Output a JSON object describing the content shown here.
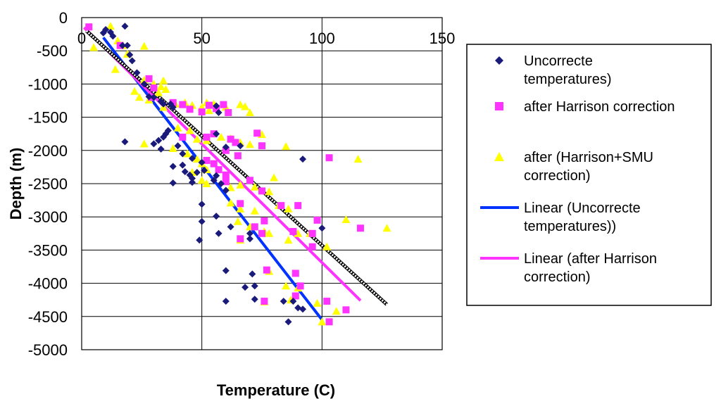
{
  "chart_data": {
    "type": "scatter",
    "xlabel": "Temperature (C)",
    "ylabel": "Depth (m)",
    "xlim": [
      0,
      150
    ],
    "ylim": [
      -5000,
      0
    ],
    "x_ticks": [
      0,
      50,
      100,
      150
    ],
    "y_ticks": [
      0,
      -500,
      -1000,
      -1500,
      -2000,
      -2500,
      -3000,
      -3500,
      -4000,
      -4500,
      -5000
    ],
    "x_tick_labels": [
      "0",
      "50",
      "100",
      "150"
    ],
    "y_tick_labels": [
      "0",
      "-500",
      "-1000",
      "-1500",
      "-2000",
      "-2500",
      "-3000",
      "-3500",
      "-4000",
      "-4500",
      "-5000"
    ],
    "legend": {
      "position": "right",
      "entries": [
        {
          "series": "uncorrected",
          "lines": [
            "Uncorrecte",
            "temperatures)"
          ]
        },
        {
          "series": "harrison",
          "lines": [
            "after Harrison correction"
          ]
        },
        {
          "series": "harrison_smu",
          "lines": [
            "after (Harrison+SMU",
            "correction)"
          ]
        },
        {
          "series": "linear_uncorrected",
          "lines": [
            "Linear (Uncorrecte",
            "temperatures))"
          ]
        },
        {
          "series": "linear_harrison",
          "lines": [
            "Linear (after Harrison",
            "correction)"
          ]
        }
      ]
    },
    "colors": {
      "uncorrected": "#1a1a7a",
      "harrison": "#ff33ff",
      "harrison_smu": "#ffff00",
      "linear_uncorrected": "#0033ff",
      "linear_harrison": "#ff33ff",
      "dotted_trend": "#555555",
      "grid": "#000000"
    },
    "series": [
      {
        "name": "uncorrected",
        "marker": "diamond",
        "points": [
          [
            18,
            -130
          ],
          [
            10,
            -180
          ],
          [
            12,
            -220
          ],
          [
            13,
            -280
          ],
          [
            9,
            -230
          ],
          [
            17,
            -420
          ],
          [
            19,
            -420
          ],
          [
            20,
            -560
          ],
          [
            21,
            -650
          ],
          [
            23,
            -830
          ],
          [
            26,
            -1000
          ],
          [
            28,
            -1190
          ],
          [
            30,
            -1200
          ],
          [
            33,
            -1260
          ],
          [
            34,
            -1300
          ],
          [
            37,
            -1300
          ],
          [
            38,
            -1350
          ],
          [
            36,
            -1700
          ],
          [
            35,
            -1750
          ],
          [
            34,
            -1800
          ],
          [
            32,
            -1850
          ],
          [
            30,
            -1900
          ],
          [
            33,
            -1980
          ],
          [
            18,
            -1870
          ],
          [
            40,
            -1930
          ],
          [
            42,
            -2050
          ],
          [
            46,
            -2120
          ],
          [
            38,
            -2240
          ],
          [
            42,
            -2220
          ],
          [
            43,
            -2320
          ],
          [
            45,
            -2370
          ],
          [
            46,
            -2420
          ],
          [
            46,
            -2480
          ],
          [
            38,
            -2490
          ],
          [
            48,
            -2330
          ],
          [
            50,
            -2180
          ],
          [
            51,
            -2300
          ],
          [
            56,
            -2380
          ],
          [
            55,
            -2450
          ],
          [
            58,
            -2500
          ],
          [
            60,
            -2600
          ],
          [
            50,
            -2810
          ],
          [
            56,
            -2990
          ],
          [
            50,
            -3070
          ],
          [
            57,
            -3250
          ],
          [
            62,
            -3150
          ],
          [
            70,
            -3250
          ],
          [
            70,
            -3330
          ],
          [
            49,
            -3350
          ],
          [
            56,
            -1330
          ],
          [
            57,
            -1430
          ],
          [
            56,
            -1750
          ],
          [
            60,
            -1950
          ],
          [
            66,
            -1930
          ],
          [
            60,
            -3810
          ],
          [
            71,
            -3860
          ],
          [
            72,
            -4040
          ],
          [
            68,
            -4060
          ],
          [
            72,
            -4240
          ],
          [
            60,
            -4270
          ],
          [
            84,
            -4270
          ],
          [
            88,
            -4270
          ],
          [
            90,
            -4370
          ],
          [
            92,
            -4390
          ],
          [
            86,
            -4580
          ],
          [
            92,
            -2130
          ],
          [
            100,
            -3170
          ]
        ]
      },
      {
        "name": "harrison",
        "marker": "square",
        "points": [
          [
            3,
            -140
          ],
          [
            16,
            -420
          ],
          [
            28,
            -920
          ],
          [
            30,
            -1060
          ],
          [
            29,
            -1200
          ],
          [
            38,
            -1280
          ],
          [
            42,
            -1310
          ],
          [
            45,
            -1380
          ],
          [
            50,
            -1420
          ],
          [
            53,
            -1320
          ],
          [
            56,
            -1370
          ],
          [
            59,
            -1310
          ],
          [
            61,
            -1430
          ],
          [
            42,
            -1800
          ],
          [
            52,
            -1800
          ],
          [
            55,
            -1750
          ],
          [
            62,
            -1830
          ],
          [
            64,
            -1880
          ],
          [
            73,
            -1740
          ],
          [
            75,
            -1930
          ],
          [
            60,
            -2000
          ],
          [
            65,
            -2080
          ],
          [
            52,
            -2150
          ],
          [
            55,
            -2200
          ],
          [
            57,
            -2290
          ],
          [
            60,
            -2370
          ],
          [
            60,
            -2470
          ],
          [
            70,
            -2450
          ],
          [
            66,
            -2800
          ],
          [
            75,
            -2610
          ],
          [
            83,
            -2830
          ],
          [
            90,
            -2830
          ],
          [
            76,
            -3060
          ],
          [
            72,
            -3150
          ],
          [
            75,
            -3250
          ],
          [
            66,
            -3330
          ],
          [
            88,
            -3220
          ],
          [
            96,
            -3250
          ],
          [
            98,
            -3050
          ],
          [
            96,
            -3450
          ],
          [
            77,
            -3800
          ],
          [
            89,
            -3850
          ],
          [
            91,
            -4040
          ],
          [
            76,
            -4270
          ],
          [
            89,
            -4190
          ],
          [
            102,
            -4270
          ],
          [
            103,
            -4580
          ],
          [
            110,
            -4400
          ],
          [
            103,
            -2110
          ],
          [
            116,
            -3170
          ]
        ]
      },
      {
        "name": "harrison_smu",
        "marker": "triangle",
        "points": [
          [
            12,
            -130
          ],
          [
            15,
            -350
          ],
          [
            17,
            -420
          ],
          [
            26,
            -430
          ],
          [
            5,
            -450
          ],
          [
            19,
            -550
          ],
          [
            14,
            -780
          ],
          [
            26,
            -940
          ],
          [
            30,
            -1000
          ],
          [
            32,
            -1130
          ],
          [
            33,
            -1040
          ],
          [
            35,
            -1080
          ],
          [
            34,
            -950
          ],
          [
            22,
            -1110
          ],
          [
            24,
            -1200
          ],
          [
            28,
            -1240
          ],
          [
            34,
            -1350
          ],
          [
            39,
            -1300
          ],
          [
            43,
            -1280
          ],
          [
            46,
            -1320
          ],
          [
            50,
            -1350
          ],
          [
            53,
            -1400
          ],
          [
            52,
            -1280
          ],
          [
            55,
            -1300
          ],
          [
            60,
            -1350
          ],
          [
            66,
            -1310
          ],
          [
            68,
            -1340
          ],
          [
            70,
            -1430
          ],
          [
            40,
            -1660
          ],
          [
            45,
            -1700
          ],
          [
            48,
            -1830
          ],
          [
            52,
            -1850
          ],
          [
            58,
            -1800
          ],
          [
            62,
            -1820
          ],
          [
            66,
            -1880
          ],
          [
            70,
            -1910
          ],
          [
            75,
            -1760
          ],
          [
            85,
            -1940
          ],
          [
            26,
            -1900
          ],
          [
            38,
            -1970
          ],
          [
            44,
            -2050
          ],
          [
            48,
            -2130
          ],
          [
            50,
            -2200
          ],
          [
            52,
            -2290
          ],
          [
            46,
            -2330
          ],
          [
            50,
            -2450
          ],
          [
            52,
            -2500
          ],
          [
            60,
            -2470
          ],
          [
            62,
            -2560
          ],
          [
            66,
            -2520
          ],
          [
            72,
            -2550
          ],
          [
            78,
            -2620
          ],
          [
            80,
            -2410
          ],
          [
            62,
            -2790
          ],
          [
            66,
            -2880
          ],
          [
            72,
            -2910
          ],
          [
            82,
            -2830
          ],
          [
            86,
            -2880
          ],
          [
            65,
            -3070
          ],
          [
            70,
            -3150
          ],
          [
            76,
            -3220
          ],
          [
            78,
            -3250
          ],
          [
            66,
            -3350
          ],
          [
            86,
            -3350
          ],
          [
            90,
            -3250
          ],
          [
            95,
            -3250
          ],
          [
            102,
            -3450
          ],
          [
            78,
            -3820
          ],
          [
            85,
            -4040
          ],
          [
            90,
            -4070
          ],
          [
            76,
            -4280
          ],
          [
            87,
            -4250
          ],
          [
            98,
            -4300
          ],
          [
            100,
            -4580
          ],
          [
            106,
            -4420
          ],
          [
            110,
            -3040
          ],
          [
            115,
            -2130
          ],
          [
            127,
            -3170
          ]
        ]
      }
    ],
    "trendlines": [
      {
        "name": "linear_uncorrected",
        "from": [
          9,
          -300
        ],
        "to": [
          100,
          -4550
        ]
      },
      {
        "name": "linear_harrison",
        "from": [
          1,
          -150
        ],
        "to": [
          116,
          -4260
        ]
      },
      {
        "name": "dotted_trend",
        "from": [
          2,
          -200
        ],
        "to": [
          127,
          -4320
        ]
      }
    ]
  }
}
